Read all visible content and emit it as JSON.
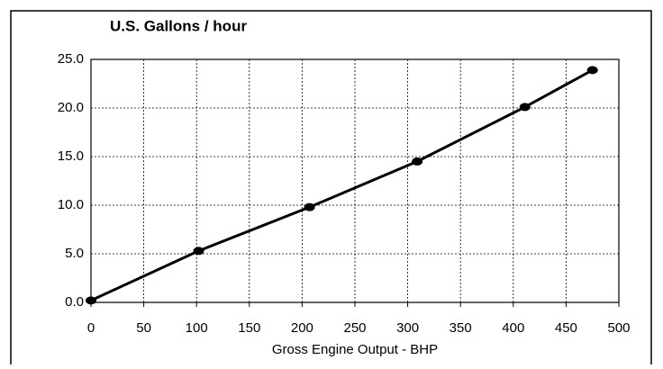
{
  "chart_data": {
    "type": "line",
    "title": "U.S. Gallons / hour",
    "x_label": "Gross Engine Output - BHP",
    "series": [
      {
        "name": null,
        "color": "#000000",
        "x": [
          0,
          102,
          207,
          309,
          411,
          475
        ],
        "values": [
          0.2,
          5.3,
          9.8,
          14.5,
          20.1,
          23.9
        ]
      }
    ],
    "xlim": [
      0,
      500
    ],
    "xticks": [
      0,
      50,
      100,
      150,
      200,
      250,
      300,
      350,
      400,
      450,
      500
    ],
    "ylim": [
      0,
      25
    ],
    "yticks": [
      {
        "value": 0,
        "label": "0.0"
      },
      {
        "value": 5,
        "label": "5.0"
      },
      {
        "value": 10,
        "label": "10.0"
      },
      {
        "value": 15,
        "label": "15.0"
      },
      {
        "value": 20,
        "label": "20.0"
      },
      {
        "value": 25,
        "label": "25.0"
      }
    ],
    "grid": true
  }
}
